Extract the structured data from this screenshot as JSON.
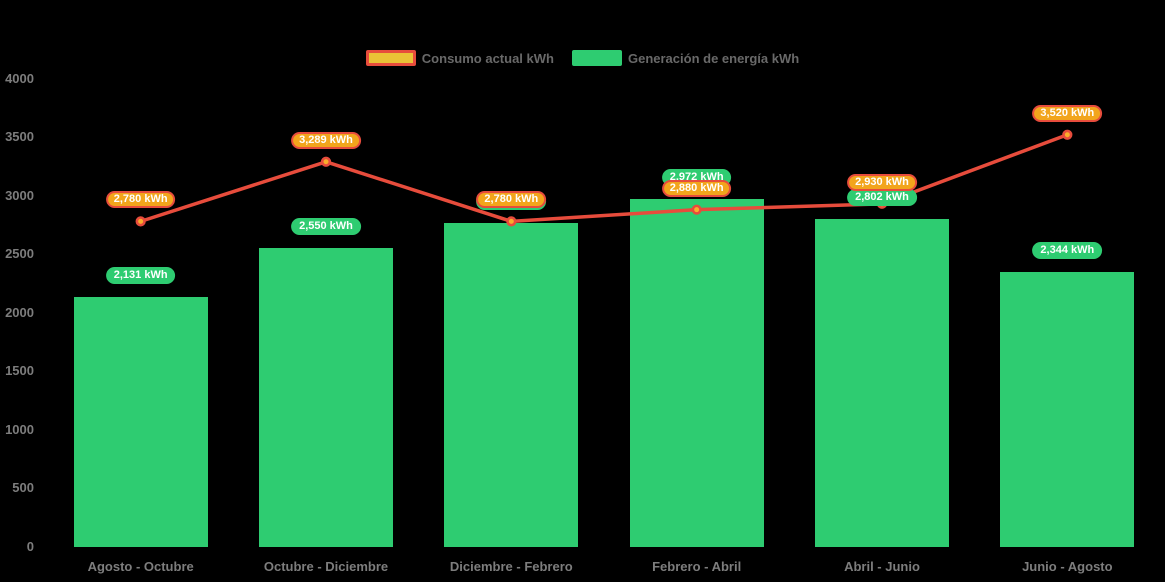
{
  "legend": {
    "items": [
      {
        "id": "consumo",
        "label": "Consumo actual kWh"
      },
      {
        "id": "generacion",
        "label": "Generación de energía kWh"
      }
    ]
  },
  "chart_data": {
    "type": "bar+line",
    "title": "",
    "categories": [
      "Agosto - Octubre",
      "Octubre - Diciembre",
      "Diciembre - Febrero",
      "Febrero - Abril",
      "Abril - Junio",
      "Junio - Agosto"
    ],
    "series": [
      {
        "name": "Generación de energía kWh",
        "type": "bar",
        "values": [
          2131,
          2550,
          2770,
          2972,
          2802,
          2344
        ],
        "point_labels": [
          "2,131 kWh",
          "2,550 kWh",
          "2,770 kWh",
          "2,972 kWh",
          "2,802 kWh",
          "2,344 kWh"
        ],
        "label_hidden_behind_line_label": [
          false,
          false,
          true,
          false,
          false,
          false
        ],
        "bar_color": "#2ecc71",
        "label_bg": "#2ecc71",
        "label_text_color": "#ffffff"
      },
      {
        "name": "Consumo actual kWh",
        "type": "line",
        "values": [
          2780,
          3289,
          2780,
          2880,
          2930,
          3520
        ],
        "point_labels": [
          "2,780 kWh",
          "3,289 kWh",
          "2,780 kWh",
          "2,880 kWh",
          "2,930 kWh",
          "3,520 kWh"
        ],
        "line_color": "#e74c3c",
        "point_fill": "#f9ae2b",
        "label_bg": "#f2a51c",
        "label_border": "#e74c3c",
        "label_text_color": "#ffffff"
      }
    ],
    "y_axis": {
      "min": 0,
      "max": 4000,
      "step": 500,
      "tick_labels": [
        "0",
        "500",
        "1000",
        "1500",
        "2000",
        "2500",
        "3000",
        "3500",
        "4000"
      ]
    },
    "x_axis": {
      "tick_labels": [
        "Agosto - Octubre",
        "Octubre - Diciembre",
        "Diciembre - Febrero",
        "Febrero - Abril",
        "Abril - Junio",
        "Junio - Agosto"
      ]
    },
    "legend_position": "top-center",
    "grid": "off",
    "background": "#000000",
    "axis_text_color": "#7d7d7d",
    "legend_text_color": "#696969"
  }
}
